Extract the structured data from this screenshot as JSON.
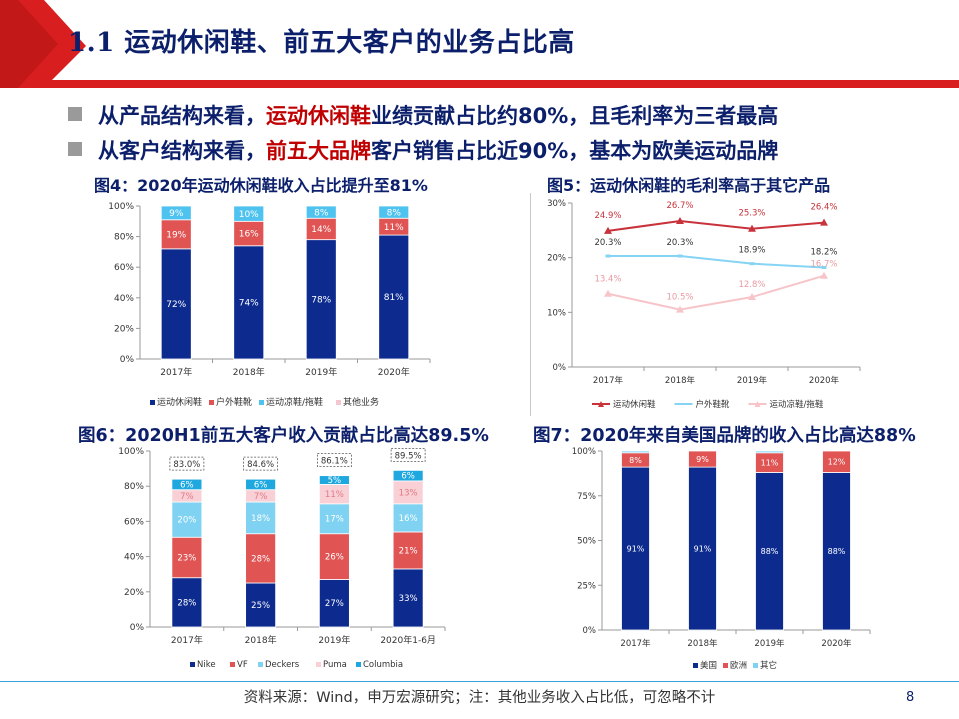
{
  "slide": {
    "title": "1.1 运动休闲鞋、前五大客户的业务占比高",
    "bullets": [
      {
        "pre": "从产品结构来看，",
        "hl": "运动休闲鞋",
        "post": "业绩贡献占比约80%，且毛利率为三者最高"
      },
      {
        "pre": "从客户结构来看，",
        "hl": "前五大品牌",
        "post": "客户销售占比近90%，基本为欧美运动品牌"
      }
    ],
    "source": "资料来源：Wind，申万宏源研究；注：其他业务收入占比低，可忽略不计",
    "page": "8",
    "colors": {
      "navy": "#0b1f6b",
      "red": "#c00000",
      "header_red": "#d81e1e"
    }
  },
  "chart_data": [
    {
      "type": "bar",
      "stacked": true,
      "title": "图4：2020年运动休闲鞋收入占比提升至81%",
      "categories": [
        "2017年",
        "2018年",
        "2019年",
        "2020年"
      ],
      "ylim": [
        0,
        100
      ],
      "yticks": [
        "0%",
        "20%",
        "40%",
        "60%",
        "80%",
        "100%"
      ],
      "series": [
        {
          "name": "运动休闲鞋",
          "color": "#0d2b8f",
          "values": [
            72,
            74,
            78,
            81
          ],
          "labels": [
            "72%",
            "74%",
            "78%",
            "81%"
          ]
        },
        {
          "name": "户外鞋靴",
          "color": "#e05454",
          "values": [
            19,
            16,
            14,
            11
          ],
          "labels": [
            "19%",
            "16%",
            "14%",
            "11%"
          ]
        },
        {
          "name": "运动凉鞋/拖鞋",
          "color": "#4fc3f0",
          "values": [
            9,
            10,
            8,
            8
          ],
          "labels": [
            "9%",
            "10%",
            "8%",
            "8%"
          ]
        },
        {
          "name": "其他业务",
          "color": "#f4c6cf",
          "values": [
            0,
            0,
            0,
            0
          ],
          "labels": [
            "",
            "",
            "",
            ""
          ]
        }
      ],
      "legend": "bottom"
    },
    {
      "type": "line",
      "title": "图5：运动休闲鞋的毛利率高于其它产品",
      "categories": [
        "2017年",
        "2018年",
        "2019年",
        "2020年"
      ],
      "ylim": [
        0,
        30
      ],
      "yticks": [
        "0%",
        "10%",
        "20%",
        "30%"
      ],
      "series": [
        {
          "name": "运动休闲鞋",
          "color": "#c8323a",
          "values": [
            24.9,
            26.7,
            25.3,
            26.4
          ],
          "labels": [
            "24.9%",
            "26.7%",
            "25.3%",
            "26.4%"
          ]
        },
        {
          "name": "户外鞋靴",
          "color": "#86d4f4",
          "values": [
            20.3,
            20.3,
            18.9,
            18.2
          ],
          "labels": [
            "20.3%",
            "20.3%",
            "18.9%",
            "18.2%"
          ]
        },
        {
          "name": "运动凉鞋/拖鞋",
          "color": "#f7c5c9",
          "values": [
            13.4,
            10.5,
            12.8,
            16.7
          ],
          "labels": [
            "13.4%",
            "10.5%",
            "12.8%",
            "16.7%"
          ]
        }
      ],
      "legend": "bottom"
    },
    {
      "type": "bar",
      "stacked": true,
      "title": "图6：2020H1前五大客户收入贡献占比高达89.5%",
      "categories": [
        "2017年",
        "2018年",
        "2019年",
        "2020年1-6月"
      ],
      "ylim": [
        0,
        100
      ],
      "yticks": [
        "0%",
        "20%",
        "40%",
        "60%",
        "80%",
        "100%"
      ],
      "totals": [
        "83.0%",
        "84.6%",
        "86.1%",
        "89.5%"
      ],
      "series": [
        {
          "name": "Nike",
          "color": "#0d2b8f",
          "values": [
            28,
            25,
            27,
            33
          ],
          "labels": [
            "28%",
            "25%",
            "27%",
            "33%"
          ]
        },
        {
          "name": "VF",
          "color": "#e05454",
          "values": [
            23,
            28,
            26,
            21
          ],
          "labels": [
            "23%",
            "28%",
            "26%",
            "21%"
          ]
        },
        {
          "name": "Deckers",
          "color": "#7fd2f2",
          "values": [
            20,
            18,
            17,
            16
          ],
          "labels": [
            "20%",
            "18%",
            "17%",
            "16%"
          ]
        },
        {
          "name": "Puma",
          "color": "#f8d0d5",
          "values": [
            7,
            7,
            11,
            13
          ],
          "labels": [
            "7%",
            "7%",
            "11%",
            "13%"
          ]
        },
        {
          "name": "Columbia",
          "color": "#1fa8e0",
          "values": [
            6,
            6,
            5,
            6
          ],
          "labels": [
            "6%",
            "6%",
            "5%",
            "6%"
          ]
        }
      ],
      "legend": "bottom"
    },
    {
      "type": "bar",
      "stacked": true,
      "title": "图7：2020年来自美国品牌的收入占比高达88%",
      "categories": [
        "2017年",
        "2018年",
        "2019年",
        "2020年"
      ],
      "ylim": [
        0,
        100
      ],
      "yticks": [
        "0%",
        "25%",
        "50%",
        "75%",
        "100%"
      ],
      "series": [
        {
          "name": "美国",
          "color": "#0d2b8f",
          "values": [
            91,
            91,
            88,
            88
          ],
          "labels": [
            "91%",
            "91%",
            "88%",
            "88%"
          ]
        },
        {
          "name": "欧洲",
          "color": "#e05454",
          "values": [
            8,
            9,
            11,
            12
          ],
          "labels": [
            "8%",
            "9%",
            "11%",
            "12%"
          ]
        },
        {
          "name": "其它",
          "color": "#7fd2f2",
          "values": [
            1,
            0,
            1,
            0
          ],
          "labels": [
            "",
            "",
            "",
            ""
          ]
        }
      ],
      "legend": "bottom"
    }
  ]
}
